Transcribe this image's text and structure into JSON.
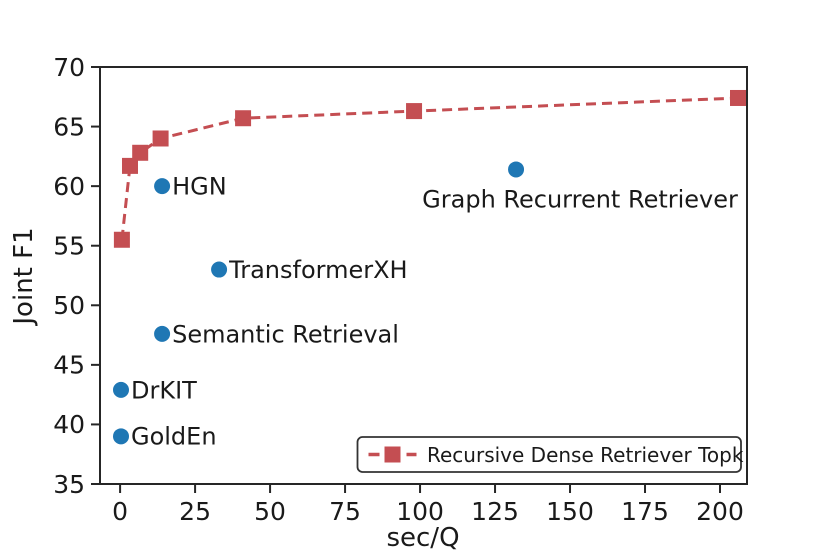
{
  "chart_data": {
    "type": "line",
    "title": "",
    "xlabel": "sec/Q",
    "ylabel": "Joint F1",
    "xlim": [
      -6.7,
      209
    ],
    "ylim": [
      35,
      70
    ],
    "x_ticks": [
      0,
      25,
      50,
      75,
      100,
      125,
      150,
      175,
      200
    ],
    "y_ticks": [
      35,
      40,
      45,
      50,
      55,
      60,
      65,
      70
    ],
    "grid": false,
    "legend_position": "lower right",
    "series": [
      {
        "name": "Recursive Dense Retriever Topk",
        "color": "#c44e52",
        "marker": "square",
        "linestyle": "dashed",
        "x": [
          0.6,
          3.3,
          6.7,
          13.5,
          41,
          98,
          206
        ],
        "y": [
          55.5,
          61.7,
          62.8,
          64.0,
          65.7,
          66.3,
          67.4
        ]
      }
    ],
    "scatter": {
      "color": "#1f77b4",
      "points": [
        {
          "label": "HGN",
          "x": 14,
          "y": 60.0,
          "label_pos": "right"
        },
        {
          "label": "TransformerXH",
          "x": 33,
          "y": 53.0,
          "label_pos": "right"
        },
        {
          "label": "Semantic Retrieval",
          "x": 14,
          "y": 47.6,
          "label_pos": "right"
        },
        {
          "label": "DrKIT",
          "x": 0.3,
          "y": 42.9,
          "label_pos": "right"
        },
        {
          "label": "GoldEn",
          "x": 0.3,
          "y": 39.0,
          "label_pos": "right"
        },
        {
          "label": "Graph Recurrent Retriever",
          "x": 132,
          "y": 61.4,
          "label_pos": "below"
        }
      ]
    },
    "legend": {
      "label": "Recursive Dense Retriever Topk"
    },
    "colors": {
      "spine": "#262626",
      "text": "#1a1a1a",
      "legend_border": "#333333"
    }
  }
}
